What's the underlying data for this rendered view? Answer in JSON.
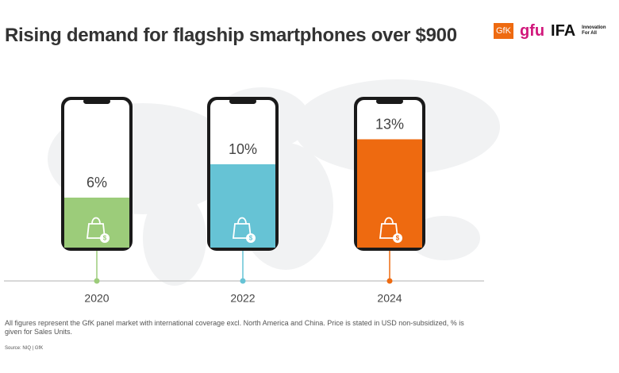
{
  "chart_data": {
    "type": "phone-fill",
    "title": "Rising demand for flagship smartphones over $900",
    "categories": [
      "2020",
      "2022",
      "2024"
    ],
    "values": [
      6,
      10,
      13
    ],
    "value_labels": [
      "6%",
      "10%",
      "13%"
    ],
    "colors": [
      "#9ccc7a",
      "#66c3d5",
      "#ee6a10"
    ],
    "footnote": "All figures represent the GfK panel market with international coverage excl. North America and China. Price is stated in USD non-subsidized, % is given for Sales Units.",
    "source": "Source: NIQ | GfK"
  },
  "logos": {
    "gfk": "GfK",
    "gfu": "gfu",
    "ifa": "IFA",
    "ifa_tagline": "Innovation For All"
  }
}
